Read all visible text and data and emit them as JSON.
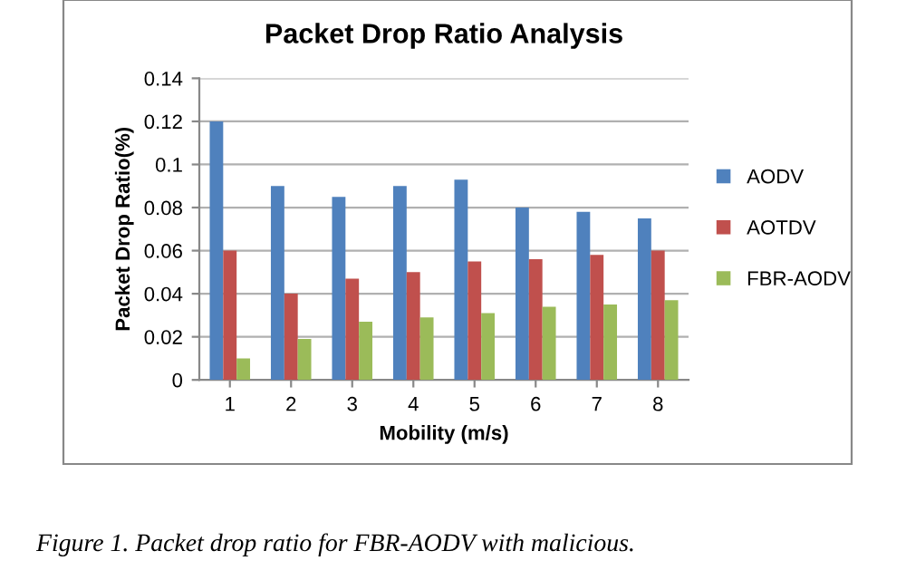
{
  "chart_data": {
    "type": "bar",
    "title": "Packet Drop Ratio Analysis",
    "xlabel": "Mobility (m/s)",
    "ylabel": "Packet Drop Ratio(%)",
    "categories": [
      "1",
      "2",
      "3",
      "4",
      "5",
      "6",
      "7",
      "8"
    ],
    "series": [
      {
        "name": "AODV",
        "color": "#4f81bd",
        "values": [
          0.12,
          0.09,
          0.085,
          0.09,
          0.093,
          0.08,
          0.078,
          0.075
        ]
      },
      {
        "name": "AOTDV",
        "color": "#c0504d",
        "values": [
          0.06,
          0.04,
          0.047,
          0.05,
          0.055,
          0.056,
          0.058,
          0.06
        ]
      },
      {
        "name": "FBR-AODV",
        "color": "#9bbb59",
        "values": [
          0.01,
          0.019,
          0.027,
          0.029,
          0.031,
          0.034,
          0.035,
          0.037
        ]
      }
    ],
    "ylim": [
      0,
      0.14
    ],
    "yticks": [
      0,
      0.02,
      0.04,
      0.06,
      0.08,
      0.1,
      0.12,
      0.14
    ],
    "grid": "y",
    "legend": "right",
    "annotations": [
      "Figure 1. Packet drop ratio for FBR-AODV with malicious."
    ]
  }
}
